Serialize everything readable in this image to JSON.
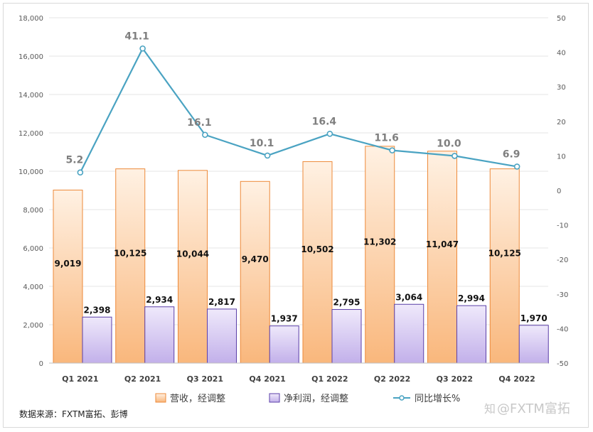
{
  "source": "数据来源：FXTM富拓、彭博",
  "watermark": "@FXTM富拓",
  "chart_data": {
    "type": "bar",
    "categories": [
      "Q1 2021",
      "Q2 2021",
      "Q3 2021",
      "Q4 2021",
      "Q1 2022",
      "Q2 2022",
      "Q3 2022",
      "Q4 2022"
    ],
    "series": [
      {
        "name": "营收，经调整",
        "type": "bar",
        "axis": "left",
        "values": [
          9019,
          10125,
          10044,
          9470,
          10502,
          11302,
          11047,
          10125
        ],
        "color": "#f5a55a"
      },
      {
        "name": "净利润，经调整",
        "type": "bar",
        "axis": "left",
        "values": [
          2398,
          2934,
          2817,
          1937,
          2795,
          3064,
          2994,
          1970
        ],
        "color": "#9b7fd4"
      },
      {
        "name": "同比增长%",
        "type": "line",
        "axis": "right",
        "values": [
          5.2,
          41.1,
          16.1,
          10.1,
          16.4,
          11.6,
          10.0,
          6.9
        ],
        "color": "#4aa3c2"
      }
    ],
    "revenue_labels": [
      "9,019",
      "10,125",
      "10,044",
      "9,470",
      "10,502",
      "11,302",
      "11,047",
      "10,125"
    ],
    "profit_labels": [
      "2,398",
      "2,934",
      "2,817",
      "1,937",
      "2,795",
      "3,064",
      "2,994",
      "1,970"
    ],
    "growth_labels": [
      "5.2",
      "41.1",
      "16.1",
      "10.1",
      "16.4",
      "11.6",
      "10.0",
      "6.9"
    ],
    "y_left": {
      "range": [
        0,
        18000
      ],
      "ticks": [
        "0",
        "2,000",
        "4,000",
        "6,000",
        "8,000",
        "10,000",
        "12,000",
        "14,000",
        "16,000",
        "18,000"
      ]
    },
    "y_right": {
      "range": [
        -50,
        50
      ],
      "ticks": [
        "-50",
        "-40",
        "-30",
        "-20",
        "-10",
        "0",
        "10",
        "20",
        "30",
        "40",
        "50"
      ]
    },
    "grid": true,
    "legend_position": "bottom"
  }
}
